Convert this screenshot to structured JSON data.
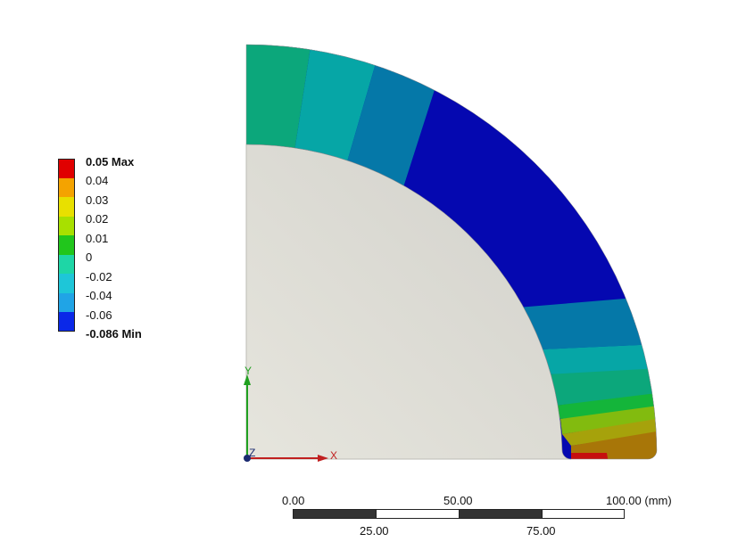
{
  "legend": {
    "items": [
      {
        "label": "0.05 Max",
        "color": "#e00000",
        "bold": true
      },
      {
        "label": "0.04",
        "color": "#f4a300",
        "bold": false
      },
      {
        "label": "0.03",
        "color": "#e8e000",
        "bold": false
      },
      {
        "label": "0.02",
        "color": "#a8e000",
        "bold": false
      },
      {
        "label": "0.01",
        "color": "#21c61c",
        "bold": false
      },
      {
        "label": "0",
        "color": "#1ed6a6",
        "bold": false
      },
      {
        "label": "-0.02",
        "color": "#1ec6d8",
        "bold": false
      },
      {
        "label": "-0.04",
        "color": "#20a4e6",
        "bold": false
      },
      {
        "label": "-0.06",
        "color": "#0a28e8",
        "bold": false
      },
      {
        "label": "-0.086 Min",
        "color": "#0a28e8",
        "bold": true
      }
    ]
  },
  "model": {
    "colors": {
      "inner": "#d9d8d2",
      "green_teal": "#0ca77b",
      "teal": "#06a6a6",
      "dark_teal": "#0578a8",
      "blue": "#0508b0",
      "green": "#14b53a",
      "lime": "#82bb0f",
      "olive": "#a6a20b",
      "brown": "#a87608",
      "red": "#c60f0f"
    }
  },
  "axes": {
    "x_label": "X",
    "y_label": "Y",
    "z_label": "Z",
    "x_color": "#c02020",
    "y_color": "#20a020"
  },
  "scale_bar": {
    "top_labels": [
      "0.00",
      "50.00",
      "100.00 (mm)"
    ],
    "bottom_labels": [
      "25.00",
      "75.00"
    ]
  }
}
